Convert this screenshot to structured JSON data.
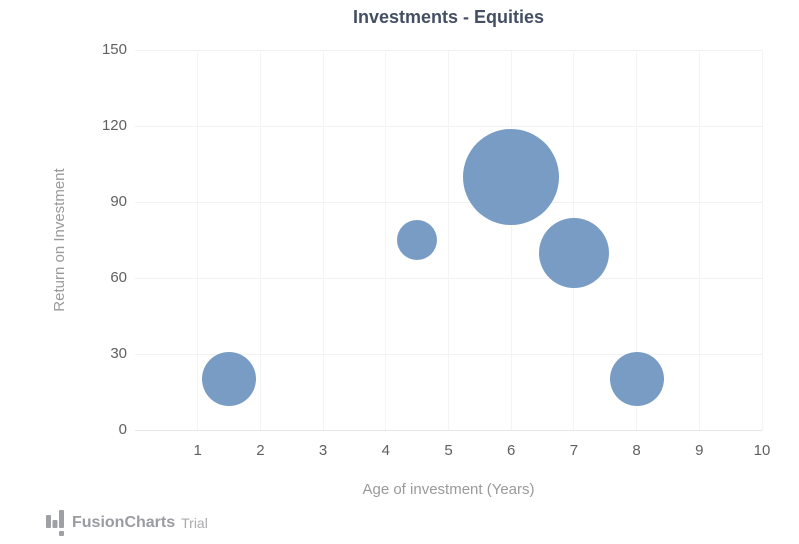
{
  "chart_data": {
    "type": "scatter",
    "variant": "bubble",
    "title": "Investments - Equities",
    "xlabel": "Age of investment (Years)",
    "ylabel": "Return on Investment",
    "xlim": [
      0,
      10
    ],
    "ylim": [
      0,
      150
    ],
    "x_ticks": [
      1,
      2,
      3,
      4,
      5,
      6,
      7,
      8,
      9,
      10
    ],
    "y_ticks": [
      0,
      30,
      60,
      90,
      120,
      150
    ],
    "grid": true,
    "legend": "none",
    "series": [
      {
        "name": "Equities",
        "color": "#799cc5",
        "points": [
          {
            "x": 1.5,
            "y": 20,
            "radius_px": 27
          },
          {
            "x": 4.5,
            "y": 75,
            "radius_px": 20
          },
          {
            "x": 6,
            "y": 100,
            "radius_px": 48
          },
          {
            "x": 7,
            "y": 70,
            "radius_px": 35
          },
          {
            "x": 8,
            "y": 20,
            "radius_px": 27
          }
        ]
      }
    ]
  },
  "branding": {
    "logo_text": "FusionCharts",
    "trial_label": "Trial"
  },
  "colors": {
    "title_text": "#454f63",
    "tick_label": "#606060",
    "axis_title": "#9a9a9a",
    "grid_line_h": "#f1f1f1",
    "grid_line_v": "#f4f4f4",
    "axis_line": "#e7e7e7",
    "bubble": "#799cc5",
    "logo_gray": "#9b9ca1",
    "trial_gray": "#a9aaae"
  }
}
